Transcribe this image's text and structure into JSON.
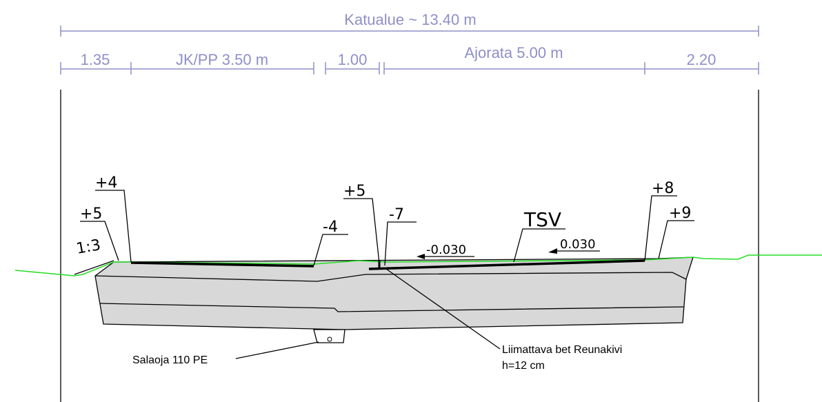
{
  "dimensions": {
    "total": "Katualue ~ 13.40 m",
    "segments": [
      "1.35",
      "JK/PP 3.50 m",
      "1.00",
      "Ajorata 5.00 m",
      "2.20"
    ]
  },
  "levels": {
    "left_outer": "+5",
    "left_inner": "+4",
    "slope": "1:3",
    "walk_edge": "-4",
    "curb_top": "+5",
    "curb_bottom": "-7",
    "road_left_slope": "-0.030",
    "surface": "TSV",
    "road_right_slope": "0.030",
    "right_inner": "+8",
    "right_outer": "+9"
  },
  "notes": {
    "drain": "Salaoja 110 PE",
    "curb": [
      "Liimattava bet Reunakivi",
      "h=12 cm"
    ]
  }
}
